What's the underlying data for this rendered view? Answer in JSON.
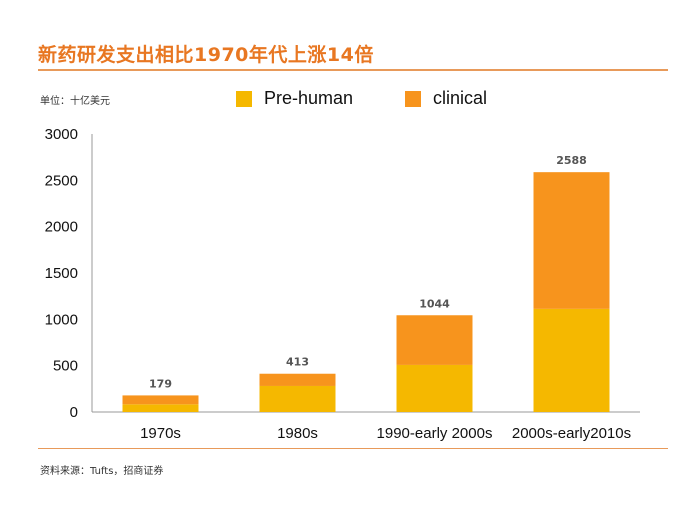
{
  "header": {
    "title": "新药研发支出相比1970年代上涨14倍"
  },
  "unit_label": "单位：十亿美元",
  "source": "资料来源：Tufts，招商证券",
  "colors": {
    "accent": "#e87722",
    "prehuman": "#f5b800",
    "clinical": "#f7941d"
  },
  "chart_data": {
    "type": "bar",
    "stacked": true,
    "title": "新药研发支出相比1970年代上涨14倍",
    "xlabel": "",
    "ylabel": "单位：十亿美元",
    "categories": [
      "1970s",
      "1980s",
      "1990-early 2000s",
      "2000s-early2010s"
    ],
    "series": [
      {
        "name": "Pre-human",
        "values": [
          83,
          281,
          508,
          1113
        ]
      },
      {
        "name": "clinical",
        "values": [
          96,
          132,
          536,
          1475
        ]
      }
    ],
    "totals": [
      179,
      413,
      1044,
      2588
    ],
    "total_labels": [
      "179",
      "413",
      "1044",
      "2588"
    ],
    "ylim": [
      0,
      3000
    ],
    "yticks": [
      0,
      500,
      1000,
      1500,
      2000,
      2500,
      3000
    ],
    "ytick_labels": [
      "0",
      "500",
      "1000",
      "1500",
      "2000",
      "2500",
      "3000"
    ],
    "legend_position": "top-center",
    "grid": false
  }
}
